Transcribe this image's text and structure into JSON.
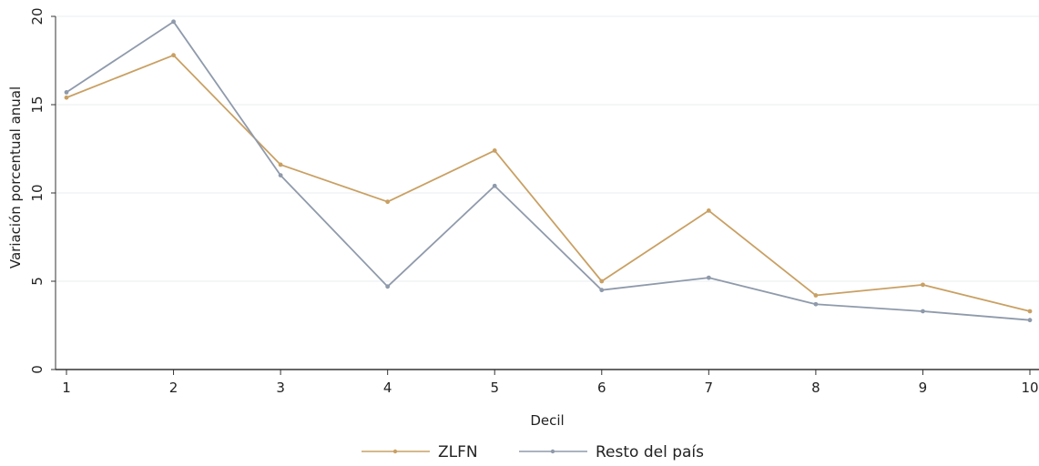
{
  "chart_data": {
    "type": "line",
    "xlabel": "Decil",
    "ylabel": "Variación porcentual anual",
    "x": [
      1,
      2,
      3,
      4,
      5,
      6,
      7,
      8,
      9,
      10
    ],
    "x_tick_labels": [
      "1",
      "2",
      "3",
      "4",
      "5",
      "6",
      "7",
      "8",
      "9",
      "10"
    ],
    "y_tick_labels": [
      "0",
      "5",
      "10",
      "15",
      "20"
    ],
    "ylim": [
      0,
      20
    ],
    "xlim": [
      1,
      10
    ],
    "grid": true,
    "legend_position": "bottom",
    "series": [
      {
        "name": "ZLFN",
        "color": "#c9a063",
        "values": [
          15.4,
          17.8,
          11.6,
          9.5,
          12.4,
          5.0,
          9.0,
          4.2,
          4.8,
          3.3
        ]
      },
      {
        "name": "Resto del país",
        "color": "#8f9aab",
        "values": [
          15.7,
          19.7,
          11.0,
          4.7,
          10.4,
          4.5,
          5.2,
          3.7,
          3.3,
          2.8
        ]
      }
    ]
  }
}
